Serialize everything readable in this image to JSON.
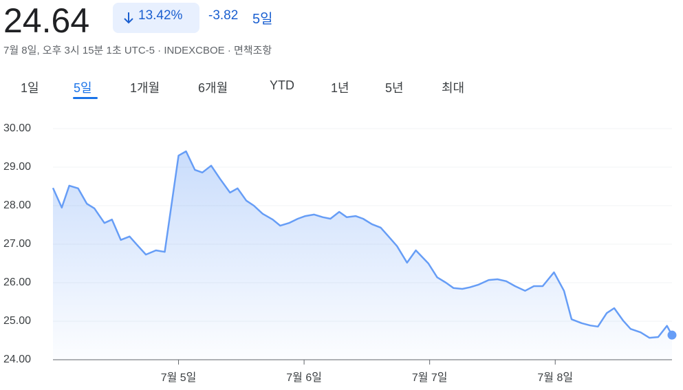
{
  "header": {
    "price": "24.64",
    "change_pct": "13.42%",
    "change": "-3.82",
    "period": "5일",
    "timestamp": "7월 8일, 오후 3시 15분 1초 UTC-5 · INDEXCBOE · 면책조항"
  },
  "tabs": [
    "1일",
    "5일",
    "1개월",
    "6개월",
    "YTD",
    "1년",
    "5년",
    "최대"
  ],
  "chart_data": {
    "type": "area",
    "color": "#669df6",
    "grid": true,
    "x": [
      0,
      0.07,
      0.13,
      0.2,
      0.27,
      0.33,
      0.41,
      0.47,
      0.54,
      0.61,
      0.67,
      0.74,
      0.82,
      0.89,
      1.0,
      1.06,
      1.13,
      1.19,
      1.26,
      1.33,
      1.41,
      1.47,
      1.54,
      1.6,
      1.67,
      1.75,
      1.81,
      1.88,
      1.95,
      2.01,
      2.08,
      2.15,
      2.21,
      2.28,
      2.34,
      2.41,
      2.47,
      2.54,
      2.61,
      2.67,
      2.74,
      2.82,
      2.89,
      2.99,
      3.06,
      3.13,
      3.19,
      3.26,
      3.32,
      3.39,
      3.47,
      3.54,
      3.61,
      3.68,
      3.76,
      3.83,
      3.9,
      3.99,
      4.07,
      4.13,
      4.21,
      4.28,
      4.34,
      4.41,
      4.47,
      4.54,
      4.6,
      4.68,
      4.75,
      4.82,
      4.89,
      4.93
    ],
    "values": [
      28.46,
      27.95,
      28.52,
      28.45,
      28.05,
      27.93,
      27.55,
      27.64,
      27.11,
      27.2,
      26.98,
      26.73,
      26.84,
      26.8,
      29.3,
      29.41,
      28.93,
      28.86,
      29.04,
      28.7,
      28.34,
      28.45,
      28.13,
      28.0,
      27.79,
      27.64,
      27.48,
      27.55,
      27.66,
      27.73,
      27.77,
      27.7,
      27.66,
      27.84,
      27.7,
      27.73,
      27.66,
      27.52,
      27.43,
      27.21,
      26.95,
      26.52,
      26.84,
      26.5,
      26.14,
      26.0,
      25.86,
      25.84,
      25.88,
      25.95,
      26.07,
      26.09,
      26.04,
      25.91,
      25.79,
      25.91,
      25.91,
      26.27,
      25.79,
      25.05,
      24.95,
      24.89,
      24.86,
      25.21,
      25.34,
      25.02,
      24.8,
      24.71,
      24.57,
      24.59,
      24.88,
      24.64
    ],
    "xlim": [
      0,
      4.93
    ],
    "xticks": [
      {
        "value": 1,
        "label": "7월 5일"
      },
      {
        "value": 2,
        "label": "7월 6일"
      },
      {
        "value": 3,
        "label": "7월 7일"
      },
      {
        "value": 4,
        "label": "7월 8일"
      }
    ],
    "ylim": [
      24,
      30
    ],
    "yticks": [
      {
        "value": 24,
        "label": "24.00"
      },
      {
        "value": 25,
        "label": "25.00"
      },
      {
        "value": 26,
        "label": "26.00"
      },
      {
        "value": 27,
        "label": "27.00"
      },
      {
        "value": 28,
        "label": "28.00"
      },
      {
        "value": 29,
        "label": "29.00"
      },
      {
        "value": 30,
        "label": "30.00"
      }
    ]
  }
}
